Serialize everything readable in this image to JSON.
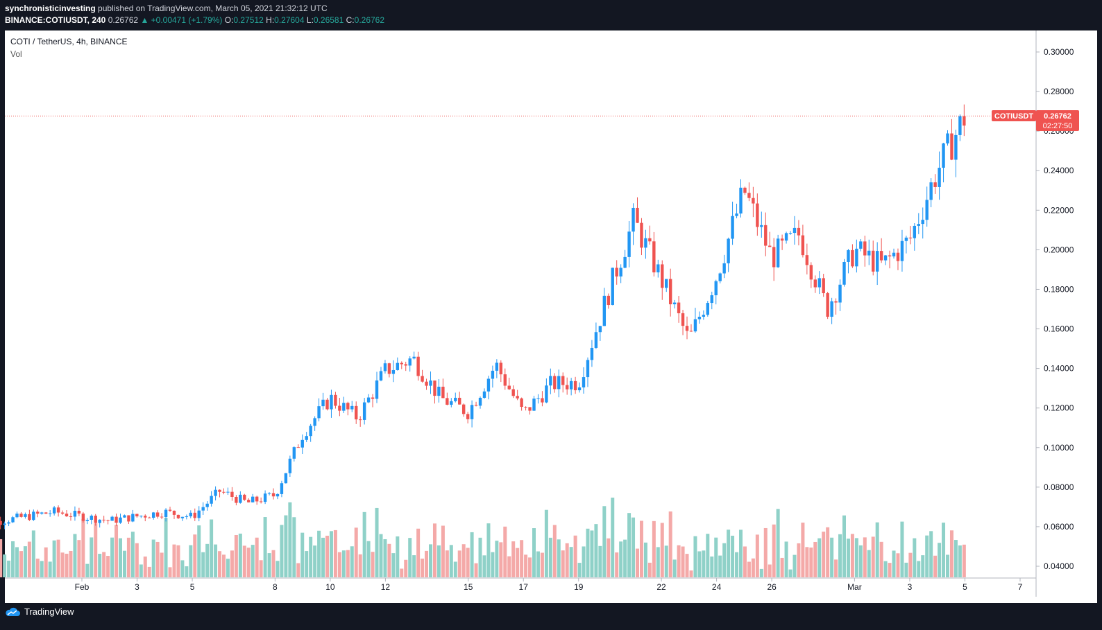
{
  "header": {
    "author": "synchronisticinvesting",
    "published_text": "published on TradingView.com, March 05, 2021 21:32:12 UTC",
    "symbol_line": "BINANCE:COTIUSDT, 240",
    "last": "0.26762",
    "change": "▲ +0.00471 (+1.79%)",
    "o_label": "O:",
    "o": "0.27512",
    "h_label": "H:",
    "h": "0.27604",
    "l_label": "L:",
    "l": "0.26581",
    "c_label": "C:",
    "c": "0.26762"
  },
  "legend": {
    "title": "COTI / TetherUS, 4h, BINANCE",
    "volume": "Vol"
  },
  "price_tag": {
    "symbol": "COTIUSDT",
    "price": "0.26762",
    "countdown": "02:27:50"
  },
  "footer": {
    "brand": "TradingView"
  },
  "colors": {
    "up": "#2196f3",
    "down": "#ef5350",
    "vol_up": "#8fd1c8",
    "vol_down": "#f4a9a8",
    "tag": "#ef5350"
  },
  "chart_data": {
    "type": "candlestick",
    "title": "COTI / TetherUS, 4h, BINANCE",
    "y_ticks": [
      "0.30000",
      "0.28000",
      "0.26000",
      "0.24000",
      "0.22000",
      "0.20000",
      "0.18000",
      "0.16000",
      "0.14000",
      "0.12000",
      "0.10000",
      "0.08000",
      "0.06000",
      "0.04000"
    ],
    "x_ticks": [
      {
        "label": "Feb",
        "date": "2021-02-01"
      },
      {
        "label": "3",
        "date": "2021-02-03"
      },
      {
        "label": "5",
        "date": "2021-02-05"
      },
      {
        "label": "8",
        "date": "2021-02-08"
      },
      {
        "label": "10",
        "date": "2021-02-10"
      },
      {
        "label": "12",
        "date": "2021-02-12"
      },
      {
        "label": "15",
        "date": "2021-02-15"
      },
      {
        "label": "17",
        "date": "2021-02-17"
      },
      {
        "label": "19",
        "date": "2021-02-19"
      },
      {
        "label": "22",
        "date": "2021-02-22"
      },
      {
        "label": "24",
        "date": "2021-02-24"
      },
      {
        "label": "26",
        "date": "2021-02-26"
      },
      {
        "label": "Mar",
        "date": "2021-03-01"
      },
      {
        "label": "3",
        "date": "2021-03-03"
      },
      {
        "label": "5",
        "date": "2021-03-05"
      },
      {
        "label": "7",
        "date": "2021-03-07"
      }
    ],
    "close_line": 0.26762,
    "price_series": [
      {
        "date": "2021-01-28",
        "close": 0.0605
      },
      {
        "date": "2021-01-31",
        "close": 0.0675
      },
      {
        "date": "2021-02-02",
        "close": 0.063
      },
      {
        "date": "2021-02-04",
        "close": 0.0675
      },
      {
        "date": "2021-02-05",
        "close": 0.065
      },
      {
        "date": "2021-02-06",
        "close": 0.078
      },
      {
        "date": "2021-02-07",
        "close": 0.072
      },
      {
        "date": "2021-02-08",
        "close": 0.076
      },
      {
        "date": "2021-02-09",
        "close": 0.107
      },
      {
        "date": "2021-02-10",
        "close": 0.125
      },
      {
        "date": "2021-02-11",
        "close": 0.115
      },
      {
        "date": "2021-02-12",
        "close": 0.139
      },
      {
        "date": "2021-02-13",
        "close": 0.145
      },
      {
        "date": "2021-02-14",
        "close": 0.125
      },
      {
        "date": "2021-02-15",
        "close": 0.118
      },
      {
        "date": "2021-02-16",
        "close": 0.142
      },
      {
        "date": "2021-02-17",
        "close": 0.117
      },
      {
        "date": "2021-02-18",
        "close": 0.132
      },
      {
        "date": "2021-02-19",
        "close": 0.133
      },
      {
        "date": "2021-02-20",
        "close": 0.175
      },
      {
        "date": "2021-02-21",
        "close": 0.215
      },
      {
        "date": "2021-02-22",
        "close": 0.185
      },
      {
        "date": "2021-02-23",
        "close": 0.154
      },
      {
        "date": "2021-02-24",
        "close": 0.187
      },
      {
        "date": "2021-02-25",
        "close": 0.23
      },
      {
        "date": "2021-02-26",
        "close": 0.196
      },
      {
        "date": "2021-02-27",
        "close": 0.208
      },
      {
        "date": "2021-02-28",
        "close": 0.17
      },
      {
        "date": "2021-03-01",
        "close": 0.2
      },
      {
        "date": "2021-03-02",
        "close": 0.192
      },
      {
        "date": "2021-03-03",
        "close": 0.205
      },
      {
        "date": "2021-03-04",
        "close": 0.24
      },
      {
        "date": "2021-03-05",
        "close": 0.2676
      }
    ]
  }
}
